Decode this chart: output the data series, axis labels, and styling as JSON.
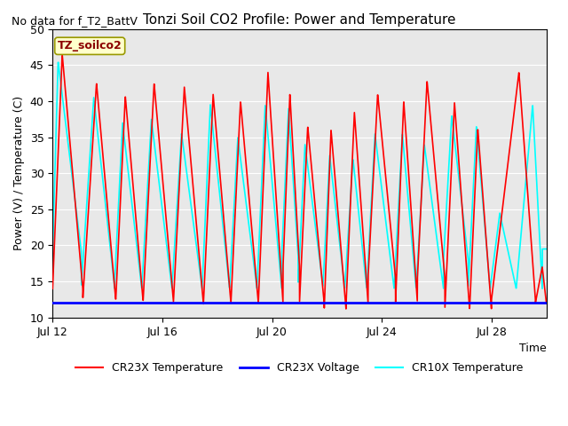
{
  "title": "Tonzi Soil CO2 Profile: Power and Temperature",
  "subtitle": "No data for f_T2_BattV",
  "ylabel": "Power (V) / Temperature (C)",
  "xlabel": "Time",
  "ylim": [
    10,
    50
  ],
  "xlim": [
    0,
    18
  ],
  "xtick_labels": [
    "Jul 12",
    "Jul 16",
    "Jul 20",
    "Jul 24",
    "Jul 28"
  ],
  "xtick_positions": [
    0,
    4,
    8,
    12,
    16
  ],
  "ytick_labels": [
    "10",
    "15",
    "20",
    "25",
    "30",
    "35",
    "40",
    "45",
    "50"
  ],
  "ytick_positions": [
    10,
    15,
    20,
    25,
    30,
    35,
    40,
    45,
    50
  ],
  "legend_labels": [
    "CR23X Temperature",
    "CR23X Voltage",
    "CR10X Temperature"
  ],
  "annotation_text": "TZ_soilco2",
  "annotation_bbox_facecolor": "#ffffcc",
  "annotation_bbox_edgecolor": "#999900",
  "background_color": "#e8e8e8",
  "cr23x_voltage_value": 12.0,
  "cr23x_cycles": [
    [
      0.0,
      0.35,
      1.1,
      46.5,
      14.0
    ],
    [
      1.1,
      1.6,
      2.3,
      42.5,
      12.5
    ],
    [
      2.3,
      2.65,
      3.3,
      40.7,
      12.2
    ],
    [
      3.3,
      3.7,
      4.4,
      42.5,
      12.3
    ],
    [
      4.4,
      4.8,
      5.5,
      42.0,
      11.8
    ],
    [
      5.5,
      5.85,
      6.5,
      41.0,
      12.0
    ],
    [
      6.5,
      6.85,
      7.5,
      40.0,
      12.0
    ],
    [
      7.5,
      7.85,
      8.4,
      44.0,
      12.0
    ],
    [
      8.4,
      8.65,
      9.0,
      41.0,
      17.0
    ],
    [
      9.0,
      9.3,
      9.9,
      36.5,
      12.0
    ],
    [
      9.9,
      10.15,
      10.7,
      36.0,
      11.0
    ],
    [
      10.7,
      11.0,
      11.5,
      38.5,
      12.0
    ],
    [
      11.5,
      11.85,
      12.5,
      41.0,
      15.5
    ],
    [
      12.5,
      12.8,
      13.3,
      40.0,
      12.0
    ],
    [
      13.3,
      13.65,
      14.3,
      42.8,
      15.5
    ],
    [
      14.3,
      14.65,
      15.2,
      39.8,
      11.2
    ],
    [
      15.2,
      15.5,
      16.0,
      36.2,
      11.0
    ],
    [
      16.0,
      17.0,
      17.6,
      44.0,
      12.5
    ],
    [
      17.6,
      17.85,
      18.0,
      17.0,
      12.0
    ]
  ],
  "cr10x_cycles": [
    [
      0.0,
      0.2,
      1.05,
      45.5,
      19.0
    ],
    [
      1.05,
      1.5,
      2.25,
      40.5,
      14.5
    ],
    [
      2.25,
      2.55,
      3.25,
      37.0,
      14.0
    ],
    [
      3.25,
      3.6,
      4.35,
      37.5,
      14.0
    ],
    [
      4.35,
      4.7,
      5.45,
      35.5,
      14.0
    ],
    [
      5.45,
      5.75,
      6.45,
      39.5,
      14.0
    ],
    [
      6.45,
      6.75,
      7.45,
      35.0,
      14.0
    ],
    [
      7.45,
      7.75,
      8.35,
      39.5,
      14.0
    ],
    [
      8.35,
      8.6,
      8.95,
      39.0,
      18.5
    ],
    [
      8.95,
      9.2,
      9.85,
      34.0,
      14.5
    ],
    [
      9.85,
      10.1,
      10.65,
      32.5,
      14.0
    ],
    [
      10.65,
      10.95,
      11.45,
      32.0,
      14.0
    ],
    [
      11.45,
      11.75,
      12.45,
      35.5,
      14.0
    ],
    [
      12.45,
      12.75,
      13.25,
      35.5,
      14.0
    ],
    [
      13.25,
      13.55,
      14.25,
      34.0,
      14.0
    ],
    [
      14.25,
      14.55,
      15.15,
      38.0,
      18.0
    ],
    [
      15.15,
      15.45,
      15.95,
      36.5,
      14.0
    ],
    [
      15.95,
      16.3,
      16.9,
      24.5,
      14.0
    ],
    [
      16.9,
      17.5,
      17.85,
      39.5,
      14.0
    ],
    [
      17.85,
      17.95,
      18.0,
      19.5,
      19.5
    ]
  ]
}
